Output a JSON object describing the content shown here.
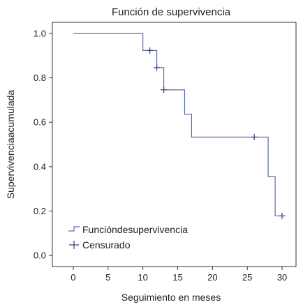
{
  "chart_data": {
    "type": "line",
    "title": "Función de supervivencia",
    "xlabel": "Seguimiento en meses",
    "ylabel": "Supervivenciaacumulada",
    "xlim": [
      -3,
      32
    ],
    "ylim": [
      -0.05,
      1.05
    ],
    "x_ticks": [
      0,
      5,
      10,
      15,
      20,
      25,
      30
    ],
    "y_ticks": [
      "0.0",
      "0.2",
      "0.4",
      "0.6",
      "0.8",
      "1.0"
    ],
    "grid": false,
    "legend_position": "bottom-left",
    "series": [
      {
        "name": "Funcióndesupervivencia",
        "type": "step",
        "color": "#5b6aa8",
        "x": [
          0,
          10,
          12,
          13,
          16,
          17,
          28,
          29,
          30
        ],
        "y": [
          1.0,
          0.923,
          0.846,
          0.746,
          0.636,
          0.533,
          0.355,
          0.178,
          0.178
        ]
      },
      {
        "name": "Censurado",
        "type": "marker",
        "marker": "plus",
        "color": "#2f3a7a",
        "x": [
          11,
          12,
          13,
          26,
          30
        ],
        "y": [
          0.923,
          0.846,
          0.746,
          0.533,
          0.178
        ]
      }
    ]
  }
}
